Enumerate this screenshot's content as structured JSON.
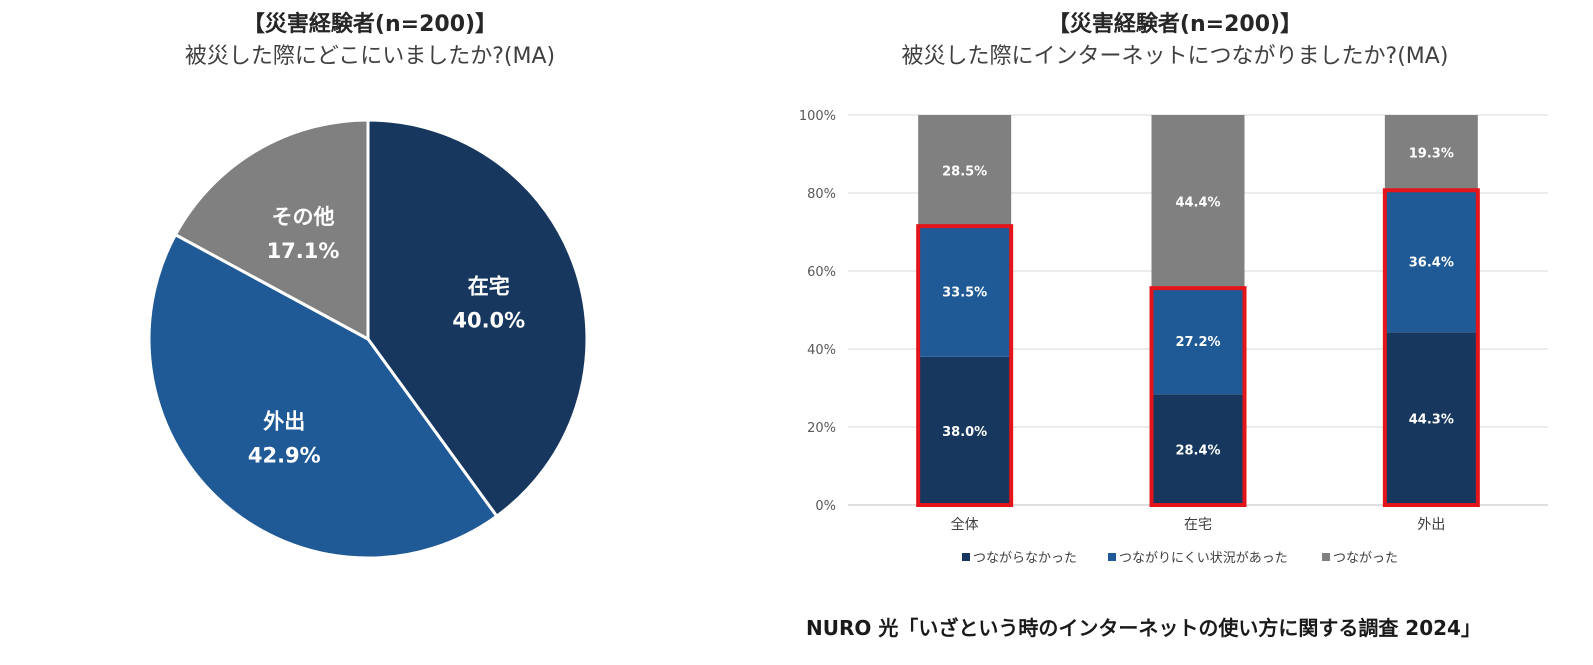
{
  "titles": {
    "left_main": "【災害経験者(n=200)】",
    "left_sub": "被災した際にどこにいましたか?(MA)",
    "right_main": "【災害経験者(n=200)】",
    "right_sub": "被災した際にインターネットにつながりましたか?(MA)"
  },
  "source": "NURO 光「いざという時のインターネットの使い方に関する調査 2024」",
  "colors": {
    "dark_navy": "#17375e",
    "blue": "#1f5a96",
    "gray": "#808080",
    "highlight": "#e3151a"
  },
  "chart_data": [
    {
      "type": "pie",
      "slices": [
        {
          "label": "在宅",
          "value": 40.0,
          "display": "40.0%",
          "color": "#17375e"
        },
        {
          "label": "外出",
          "value": 42.9,
          "display": "42.9%",
          "color": "#1f5a96"
        },
        {
          "label": "その他",
          "value": 17.1,
          "display": "17.1%",
          "color": "#808080"
        }
      ]
    },
    {
      "type": "bar",
      "stacked": true,
      "categories": [
        "全体",
        "在宅",
        "外出"
      ],
      "series": [
        {
          "name": "つながらなかった",
          "values": [
            38.0,
            28.4,
            44.3
          ],
          "color": "#17375e"
        },
        {
          "name": "つながりにくい状況があった",
          "values": [
            33.5,
            27.2,
            36.4
          ],
          "color": "#1f5a96"
        },
        {
          "name": "つながった",
          "values": [
            28.5,
            44.4,
            19.3
          ],
          "color": "#808080"
        }
      ],
      "yticks": [
        "0%",
        "20%",
        "40%",
        "60%",
        "80%",
        "100%"
      ],
      "ylim": [
        0,
        100
      ],
      "highlight_series_count": 2,
      "legend_position": "bottom",
      "grid": true
    }
  ]
}
